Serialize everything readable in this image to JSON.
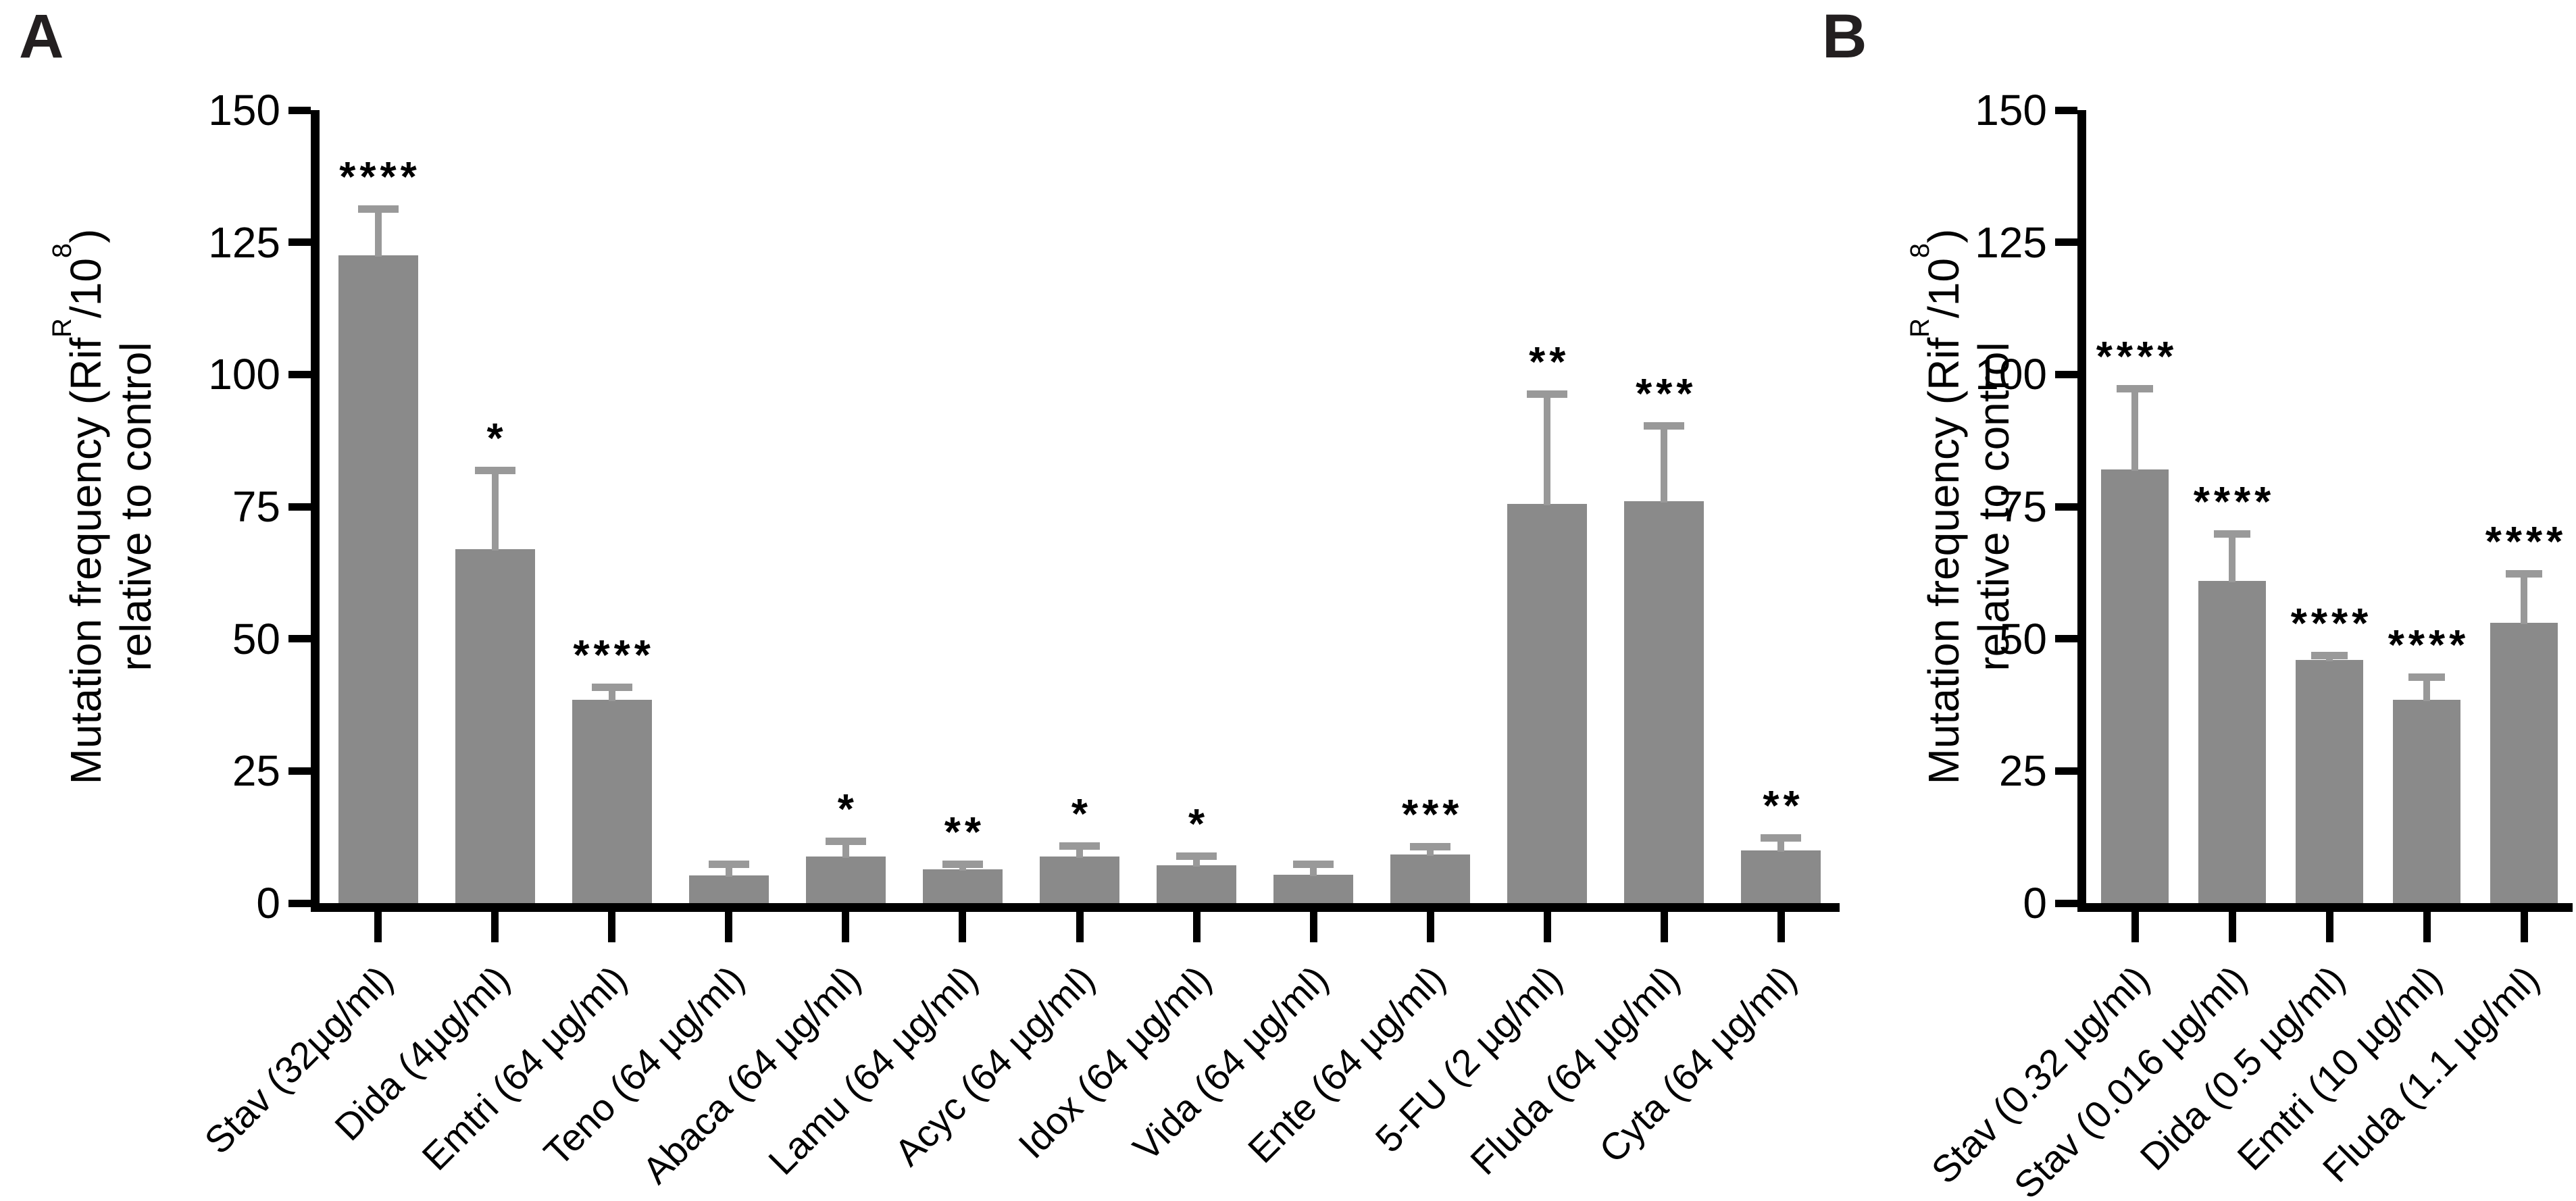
{
  "figure": {
    "panel_a_letter": "A",
    "panel_b_letter": "B"
  },
  "chart_data": [
    {
      "panel": "A",
      "type": "bar",
      "title": "",
      "ylabel": {
        "pre": "Mutation frequency (Rif",
        "sup1": "R",
        "mid": "/10",
        "sup2": "8",
        "post": ")",
        "line2": "relative to control"
      },
      "axes": {
        "ylim": [
          0,
          150
        ],
        "yticks": [
          0,
          25,
          50,
          75,
          100,
          125,
          150
        ],
        "grid": false,
        "legend": null
      },
      "categories": [
        "Stav (32µg/ml)",
        "Dida (4µg/ml)",
        "Emtri (64 µg/ml)",
        "Teno (64 µg/ml)",
        "Abaca (64 µg/ml)",
        "Lamu (64 µg/ml)",
        "Acyc (64 µg/ml)",
        "Idox (64 µg/ml)",
        "Vida (64 µg/ml)",
        "Ente (64 µg/ml)",
        "5-FU (2 µg/ml)",
        "Fluda (64 µg/ml)",
        "Cyta (64 µg/ml)"
      ],
      "values": [
        122.5,
        67,
        38.5,
        5.3,
        8.8,
        6.4,
        8.8,
        7.1,
        5.4,
        9.2,
        75.5,
        76,
        10
      ],
      "errors_up": [
        9.5,
        15.5,
        3,
        2.8,
        3.6,
        1.6,
        2.7,
        2.5,
        2.6,
        2.2,
        21.5,
        15,
        3
      ],
      "significance": [
        "****",
        "*",
        "****",
        "",
        "*",
        "**",
        "*",
        "*",
        "",
        "***",
        "**",
        "***",
        "**"
      ],
      "bar_color": "#8a8a8a",
      "error_color": "#999999",
      "axis_color": "#000000"
    },
    {
      "panel": "B",
      "type": "bar",
      "title": "",
      "ylabel": {
        "pre": "Mutation frequency (Rif",
        "sup1": "R",
        "mid": "/10",
        "sup2": "8",
        "post": ")",
        "line2": "relative to control"
      },
      "axes": {
        "ylim": [
          0,
          150
        ],
        "yticks": [
          0,
          25,
          50,
          75,
          100,
          125,
          150
        ],
        "grid": false,
        "legend": null
      },
      "categories": [
        "Stav (0.32 µg/ml)",
        "Stav (0.016 µg/ml)",
        "Dida (0.5 µg/ml)",
        "Emtri (10 µg/ml)",
        "Fluda (1.1 µg/ml)"
      ],
      "values": [
        82,
        61,
        46,
        38.5,
        53
      ],
      "errors_up": [
        16,
        9.5,
        1.5,
        5,
        10
      ],
      "significance": [
        "****",
        "****",
        "****",
        "****",
        "****"
      ],
      "bar_color": "#8a8a8a",
      "error_color": "#999999",
      "axis_color": "#000000"
    }
  ]
}
